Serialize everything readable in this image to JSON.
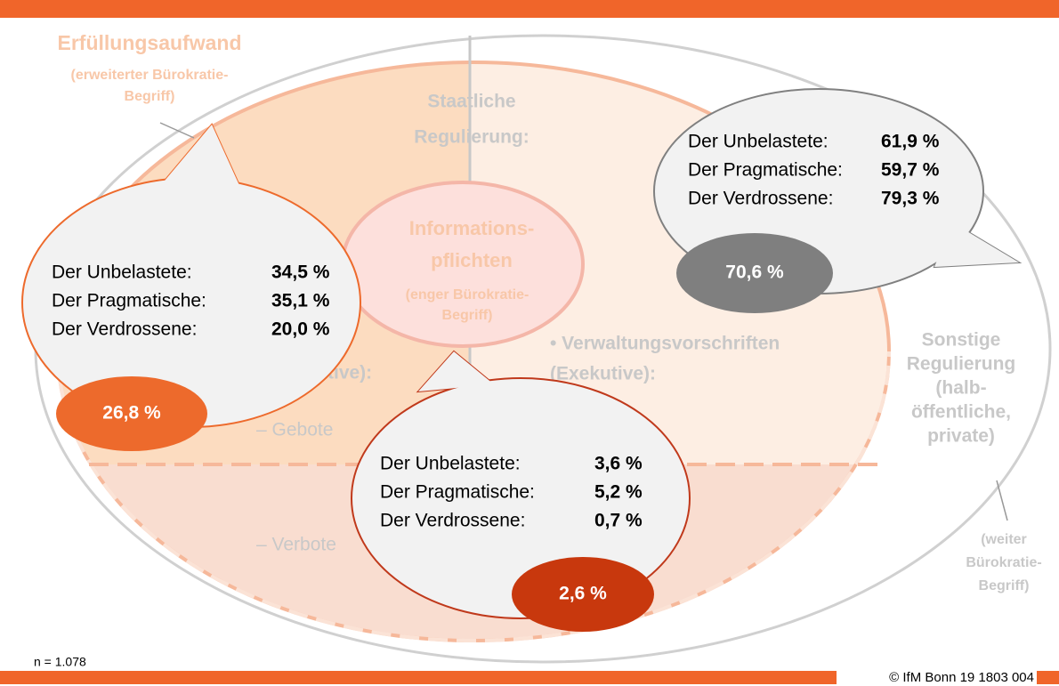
{
  "header": {
    "title": "Erfüllungsaufwand",
    "subtitle": [
      "(erweiterter Bürokratie-",
      "Begriff)"
    ]
  },
  "state": {
    "title": [
      "Staatliche",
      "Regulierung:"
    ],
    "left": [
      "tive):",
      "– Gebote",
      "– Verbote"
    ],
    "right": [
      "• Verwaltungsvorschriften",
      "(Exekutive):"
    ]
  },
  "info": {
    "title": [
      "Informations-",
      "pflichten"
    ],
    "subtitle": [
      "(enger Bürokratie-",
      "Begriff)"
    ]
  },
  "other": {
    "title": [
      "Sonstige",
      "Regulierung",
      "(halb-",
      "öffentliche,",
      "private)"
    ],
    "subtitle": [
      "(weiter",
      "Bürokratie-",
      "Begriff)"
    ]
  },
  "bubbles": [
    {
      "rows": [
        [
          "Der Unbelastete:",
          "34,5 %"
        ],
        [
          "Der Pragmatische:",
          "35,1 %"
        ],
        [
          "Der Verdrossene:",
          "20,0 %"
        ]
      ],
      "total": "26,8 %"
    },
    {
      "rows": [
        [
          "Der Unbelastete:",
          "61,9 %"
        ],
        [
          "Der Pragmatische:",
          "59,7 %"
        ],
        [
          "Der Verdrossene:",
          "79,3 %"
        ]
      ],
      "total": "70,6 %"
    },
    {
      "rows": [
        [
          "Der Unbelastete:",
          "3,6 %"
        ],
        [
          "Der Pragmatische:",
          "5,2 %"
        ],
        [
          "Der Verdrossene:",
          "0,7 %"
        ]
      ],
      "total": "2,6 %"
    }
  ],
  "footer": {
    "note": "n = 1.078",
    "source": "© IfM Bonn 19 1803 004"
  }
}
